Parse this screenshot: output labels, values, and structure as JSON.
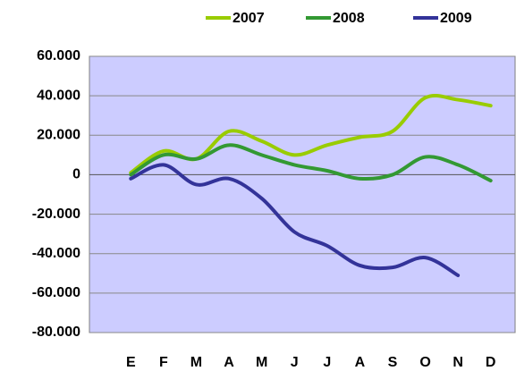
{
  "chart_data": {
    "type": "line",
    "categories": [
      "E",
      "F",
      "M",
      "A",
      "M",
      "J",
      "J",
      "A",
      "S",
      "O",
      "N",
      "D"
    ],
    "series": [
      {
        "name": "2007",
        "color": "#99cc00",
        "values": [
          1000,
          12000,
          8000,
          22000,
          17000,
          10000,
          15000,
          19000,
          22000,
          39000,
          38000,
          35000
        ]
      },
      {
        "name": "2008",
        "color": "#339933",
        "values": [
          0,
          10000,
          8000,
          15000,
          10000,
          5000,
          2000,
          -2000,
          0,
          9000,
          5000,
          -3000
        ]
      },
      {
        "name": "2009",
        "color": "#333399",
        "values": [
          -2000,
          5000,
          -5000,
          -2000,
          -12000,
          -29000,
          -36000,
          -46000,
          -47000,
          -42000,
          -51000,
          null
        ]
      }
    ],
    "ylim": [
      -80000,
      60000
    ],
    "yticks": [
      {
        "value": -80000,
        "label": "-80.000"
      },
      {
        "value": -60000,
        "label": "-60.000"
      },
      {
        "value": -40000,
        "label": "-40.000"
      },
      {
        "value": -20000,
        "label": "-20.000"
      },
      0,
      {
        "value": 20000,
        "label": "20.000"
      },
      {
        "value": 40000,
        "label": "40.000"
      },
      {
        "value": 60000,
        "label": "60.000"
      }
    ],
    "grid": true,
    "legend": "top",
    "plot_background": "#ccccff"
  }
}
